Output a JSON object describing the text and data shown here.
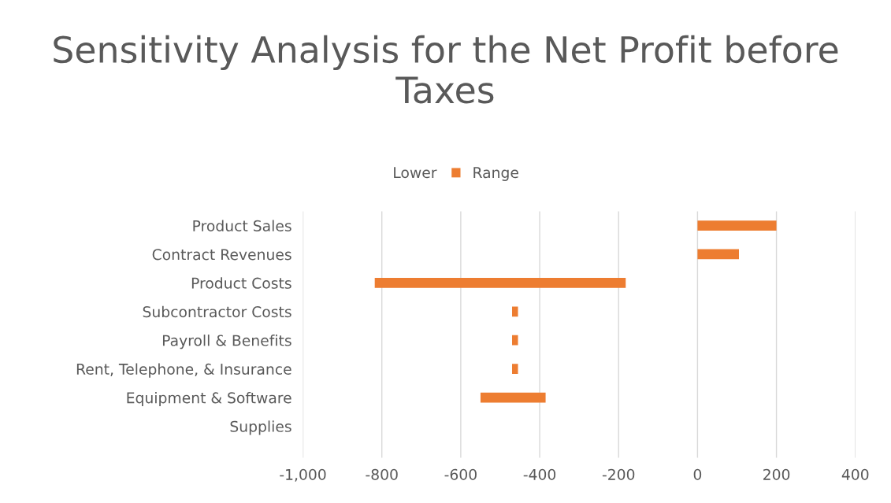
{
  "chart_data": {
    "type": "bar",
    "orientation": "horizontal",
    "title": "Sensitivity Analysis for the Net Profit before Taxes",
    "categories": [
      "Product Sales",
      "Contract Revenues",
      "Product Costs",
      "Subcontractor Costs",
      "Payroll & Benefits",
      "Rent, Telephone, & Insurance",
      "Equipment & Software",
      "Supplies"
    ],
    "series": [
      {
        "name": "Lower",
        "color": null,
        "values": [
          null,
          null,
          null,
          null,
          null,
          null,
          null,
          null
        ]
      },
      {
        "name": "Range",
        "color": "#ed7d31",
        "values": [
          200,
          105,
          636,
          15,
          15,
          15,
          165,
          null
        ],
        "base": [
          0,
          0,
          -818,
          -470,
          -470,
          -470,
          -550,
          null
        ]
      }
    ],
    "xlim": [
      -1000,
      400
    ],
    "xticks": [
      {
        "value": -1000,
        "label": "-1,000"
      },
      -800,
      -600,
      -400,
      -200,
      0,
      200,
      400
    ],
    "grid": "x",
    "legend": "top"
  }
}
